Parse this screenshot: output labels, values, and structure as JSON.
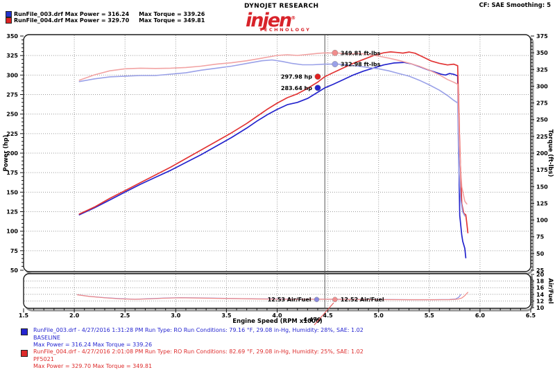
{
  "header": {
    "legend": [
      {
        "color": "#2233cc",
        "power_part": "RunFile_003.drf Max Power = 316.24",
        "torque_part": "Max Torque = 339.26"
      },
      {
        "color": "#dd2222",
        "power_part": "RunFile_004.drf Max Power = 329.70",
        "torque_part": "Max Torque = 349.81"
      }
    ],
    "brand_top": "DYNOJET RESEARCH",
    "brand_logo": "injen",
    "brand_reg": "®",
    "brand_sub": "TECHNOLOGY",
    "cf_label": "CF: SAE  Smoothing: 5"
  },
  "cursor": {
    "rpm": 4.47,
    "readout": "4.470"
  },
  "chart_data": {
    "type": "line",
    "x_axis": {
      "label": "Engine Speed (RPM x1000)",
      "min": 1.5,
      "max": 6.5,
      "major_tick": 0.5,
      "minor_tick": 0.1,
      "ticks": [
        "1.5",
        "2.0",
        "2.5",
        "3.0",
        "3.5",
        "4.0",
        "4.5",
        "5.0",
        "5.5",
        "6.0",
        "6.5"
      ]
    },
    "power_axis": {
      "label": "Power (hp)",
      "min": 50,
      "max": 350,
      "ticks": [
        350,
        325,
        300,
        275,
        250,
        225,
        200,
        175,
        150,
        125,
        100,
        75,
        50
      ]
    },
    "torque_axis": {
      "label": "Torque (ft-lbs)",
      "min": 25,
      "max": 375,
      "ticks": [
        375,
        350,
        325,
        300,
        275,
        250,
        225,
        200,
        175,
        150,
        125,
        100,
        75,
        50,
        25
      ]
    },
    "afr_axis": {
      "label": "Air/Fuel",
      "min": 10,
      "max": 20,
      "ticks": [
        20,
        18,
        16,
        14,
        12,
        10
      ]
    },
    "grid": {
      "h_power": [
        325,
        300,
        275,
        250,
        225,
        200,
        175,
        150,
        125,
        100,
        75
      ],
      "v_rpm": [
        2.0,
        2.5,
        3.0,
        3.5,
        4.0,
        4.5,
        5.0,
        5.5,
        6.0
      ],
      "h_afr": [
        18,
        16,
        14,
        12
      ]
    },
    "series": [
      {
        "id": "power_003",
        "name": "RunFile_003 Power",
        "axis": "power",
        "color": "#2323cd",
        "width": 1.7,
        "points": [
          [
            2.05,
            121
          ],
          [
            2.2,
            130
          ],
          [
            2.35,
            140
          ],
          [
            2.5,
            150
          ],
          [
            2.65,
            160
          ],
          [
            2.8,
            169
          ],
          [
            2.95,
            178
          ],
          [
            3.1,
            188
          ],
          [
            3.25,
            198
          ],
          [
            3.4,
            209
          ],
          [
            3.55,
            220
          ],
          [
            3.7,
            232
          ],
          [
            3.8,
            241
          ],
          [
            3.9,
            249
          ],
          [
            4.0,
            256
          ],
          [
            4.1,
            262
          ],
          [
            4.2,
            265
          ],
          [
            4.3,
            270
          ],
          [
            4.4,
            278
          ],
          [
            4.47,
            283.6
          ],
          [
            4.55,
            288
          ],
          [
            4.65,
            294
          ],
          [
            4.75,
            300
          ],
          [
            4.85,
            305
          ],
          [
            4.95,
            309
          ],
          [
            5.05,
            313
          ],
          [
            5.15,
            315.5
          ],
          [
            5.25,
            316.2
          ],
          [
            5.32,
            314.5
          ],
          [
            5.4,
            311
          ],
          [
            5.48,
            307
          ],
          [
            5.55,
            304
          ],
          [
            5.62,
            301
          ],
          [
            5.66,
            300
          ],
          [
            5.7,
            302
          ],
          [
            5.74,
            301
          ],
          [
            5.78,
            299
          ],
          [
            5.79,
            200
          ],
          [
            5.8,
            120
          ],
          [
            5.82,
            95
          ],
          [
            5.83,
            87
          ],
          [
            5.85,
            78
          ],
          [
            5.86,
            66
          ]
        ]
      },
      {
        "id": "power_004",
        "name": "RunFile_004 Power",
        "axis": "power",
        "color": "#e23434",
        "width": 1.7,
        "points": [
          [
            2.05,
            122
          ],
          [
            2.2,
            131
          ],
          [
            2.35,
            142
          ],
          [
            2.5,
            152
          ],
          [
            2.65,
            162
          ],
          [
            2.8,
            172
          ],
          [
            2.95,
            182
          ],
          [
            3.1,
            193
          ],
          [
            3.25,
            204
          ],
          [
            3.4,
            215
          ],
          [
            3.55,
            226
          ],
          [
            3.7,
            238
          ],
          [
            3.8,
            247
          ],
          [
            3.9,
            256
          ],
          [
            4.0,
            264
          ],
          [
            4.1,
            271
          ],
          [
            4.2,
            276
          ],
          [
            4.3,
            283
          ],
          [
            4.4,
            291
          ],
          [
            4.47,
            298
          ],
          [
            4.55,
            303
          ],
          [
            4.65,
            309
          ],
          [
            4.75,
            315
          ],
          [
            4.85,
            320
          ],
          [
            4.95,
            325
          ],
          [
            5.05,
            328.5
          ],
          [
            5.12,
            329.7
          ],
          [
            5.18,
            329
          ],
          [
            5.24,
            328.2
          ],
          [
            5.3,
            329.5
          ],
          [
            5.36,
            328
          ],
          [
            5.44,
            323
          ],
          [
            5.52,
            318
          ],
          [
            5.6,
            315
          ],
          [
            5.68,
            313
          ],
          [
            5.74,
            314
          ],
          [
            5.78,
            312
          ],
          [
            5.8,
            210
          ],
          [
            5.82,
            135
          ],
          [
            5.84,
            123
          ],
          [
            5.86,
            121
          ],
          [
            5.87,
            110
          ],
          [
            5.88,
            98
          ]
        ]
      },
      {
        "id": "torque_003",
        "name": "RunFile_003 Torque",
        "axis": "torque",
        "color": "#9aa1e8",
        "width": 1.6,
        "points": [
          [
            2.05,
            307
          ],
          [
            2.2,
            311
          ],
          [
            2.35,
            314
          ],
          [
            2.5,
            315
          ],
          [
            2.65,
            316
          ],
          [
            2.8,
            316
          ],
          [
            2.95,
            318
          ],
          [
            3.1,
            320
          ],
          [
            3.25,
            324
          ],
          [
            3.4,
            327
          ],
          [
            3.55,
            330
          ],
          [
            3.7,
            334
          ],
          [
            3.85,
            338
          ],
          [
            3.95,
            339.3
          ],
          [
            4.05,
            337
          ],
          [
            4.15,
            334
          ],
          [
            4.25,
            332
          ],
          [
            4.35,
            332
          ],
          [
            4.47,
            333
          ],
          [
            4.6,
            333
          ],
          [
            4.7,
            331.5
          ],
          [
            4.8,
            330
          ],
          [
            4.9,
            328
          ],
          [
            5.0,
            326
          ],
          [
            5.1,
            323
          ],
          [
            5.2,
            319
          ],
          [
            5.3,
            315
          ],
          [
            5.4,
            309
          ],
          [
            5.5,
            302
          ],
          [
            5.6,
            294
          ],
          [
            5.68,
            286
          ],
          [
            5.74,
            279
          ],
          [
            5.78,
            275
          ],
          [
            5.79,
            180
          ],
          [
            5.81,
            130
          ],
          [
            5.83,
            112
          ],
          [
            5.85,
            106
          ]
        ]
      },
      {
        "id": "torque_004",
        "name": "RunFile_004 Torque",
        "axis": "torque",
        "color": "#f2a3a3",
        "width": 1.6,
        "points": [
          [
            2.05,
            309
          ],
          [
            2.2,
            317
          ],
          [
            2.35,
            323
          ],
          [
            2.5,
            326
          ],
          [
            2.65,
            327
          ],
          [
            2.8,
            326.5
          ],
          [
            2.95,
            327
          ],
          [
            3.1,
            328
          ],
          [
            3.25,
            330
          ],
          [
            3.4,
            333
          ],
          [
            3.55,
            335
          ],
          [
            3.7,
            338
          ],
          [
            3.85,
            342
          ],
          [
            4.0,
            346
          ],
          [
            4.1,
            347
          ],
          [
            4.2,
            346
          ],
          [
            4.3,
            347.5
          ],
          [
            4.4,
            349
          ],
          [
            4.47,
            349.8
          ],
          [
            4.6,
            349.5
          ],
          [
            4.7,
            348
          ],
          [
            4.8,
            349
          ],
          [
            4.9,
            347.5
          ],
          [
            5.0,
            345
          ],
          [
            5.1,
            342
          ],
          [
            5.2,
            338.5
          ],
          [
            5.3,
            334.5
          ],
          [
            5.4,
            330
          ],
          [
            5.5,
            324
          ],
          [
            5.6,
            317
          ],
          [
            5.68,
            310
          ],
          [
            5.74,
            306
          ],
          [
            5.78,
            303
          ],
          [
            5.8,
            200
          ],
          [
            5.82,
            150
          ],
          [
            5.85,
            128
          ],
          [
            5.87,
            124
          ]
        ]
      },
      {
        "id": "afr_003",
        "name": "RunFile_003 Air/Fuel",
        "axis": "afr",
        "color": "#8886e0",
        "width": 1.2,
        "points": [
          [
            2.03,
            13.9
          ],
          [
            2.15,
            13.4
          ],
          [
            2.3,
            13.0
          ],
          [
            2.45,
            12.7
          ],
          [
            2.6,
            12.55
          ],
          [
            2.75,
            12.7
          ],
          [
            2.9,
            12.9
          ],
          [
            3.05,
            13.0
          ],
          [
            3.2,
            12.95
          ],
          [
            3.4,
            12.85
          ],
          [
            3.6,
            12.75
          ],
          [
            3.8,
            12.65
          ],
          [
            4.0,
            12.6
          ],
          [
            4.2,
            12.55
          ],
          [
            4.47,
            12.53
          ],
          [
            4.7,
            12.5
          ],
          [
            5.0,
            12.45
          ],
          [
            5.3,
            12.4
          ],
          [
            5.55,
            12.4
          ],
          [
            5.7,
            12.45
          ],
          [
            5.76,
            12.6
          ],
          [
            5.79,
            13.1
          ],
          [
            5.81,
            13.9
          ]
        ]
      },
      {
        "id": "afr_004",
        "name": "RunFile_004 Air/Fuel",
        "axis": "afr",
        "color": "#ef8886",
        "width": 1.2,
        "points": [
          [
            2.03,
            13.85
          ],
          [
            2.15,
            13.35
          ],
          [
            2.3,
            12.95
          ],
          [
            2.45,
            12.65
          ],
          [
            2.6,
            12.5
          ],
          [
            2.75,
            12.65
          ],
          [
            2.9,
            12.85
          ],
          [
            3.05,
            12.95
          ],
          [
            3.2,
            12.9
          ],
          [
            3.4,
            12.8
          ],
          [
            3.6,
            12.7
          ],
          [
            3.8,
            12.6
          ],
          [
            4.0,
            12.55
          ],
          [
            4.2,
            12.5
          ],
          [
            4.47,
            12.52
          ],
          [
            4.7,
            12.48
          ],
          [
            5.0,
            12.42
          ],
          [
            5.3,
            12.38
          ],
          [
            5.55,
            12.38
          ],
          [
            5.7,
            12.4
          ],
          [
            5.78,
            12.55
          ],
          [
            5.82,
            12.9
          ],
          [
            5.85,
            13.6
          ],
          [
            5.87,
            14.3
          ],
          [
            5.88,
            14.6
          ]
        ]
      }
    ],
    "annotations": [
      {
        "text": "349.81 ft-lbs",
        "axis": "torque",
        "rpm": 4.57,
        "value": 349.81,
        "dot_color": "#f08c8c",
        "side": "right"
      },
      {
        "text": "332.98 ft-lbs",
        "axis": "torque",
        "rpm": 4.57,
        "value": 332.98,
        "dot_color": "#9aa1e8",
        "side": "right"
      },
      {
        "text": "297.98 hp",
        "axis": "power",
        "rpm": 4.4,
        "value": 297.98,
        "dot_color": "#e02020",
        "side": "left"
      },
      {
        "text": "283.64 hp",
        "axis": "power",
        "rpm": 4.4,
        "value": 283.64,
        "dot_color": "#2323cd",
        "side": "left"
      },
      {
        "text": "12.53 Air/Fuel",
        "axis": "afr",
        "rpm": 4.39,
        "value": 12.45,
        "dot_color": "#8a8ae0",
        "side": "left"
      },
      {
        "text": "12.52 Air/Fuel",
        "axis": "afr",
        "rpm": 4.57,
        "value": 12.45,
        "dot_color": "#f29090",
        "side": "right"
      }
    ]
  },
  "footer": {
    "runs": [
      {
        "color": "#2424d0",
        "line1": "RunFile_003.drf - 4/27/2016 1:31:28 PM  Run Type: RO  Run Conditions: 79.16 °F, 29.08 in-Hg,  Humidity:  28%, SAE: 1.02",
        "name": "BASELINE",
        "line2": "Max Power = 316.24  Max Torque = 339.26"
      },
      {
        "color": "#dd2a2a",
        "line1": "RunFile_004.drf - 4/27/2016 2:01:08 PM  Run Type: RO  Run Conditions: 82.69 °F, 29.08 in-Hg,  Humidity:  25%, SAE: 1.02",
        "name": "PF5021",
        "line2": "Max Power = 329.70  Max Torque = 349.81"
      }
    ]
  }
}
